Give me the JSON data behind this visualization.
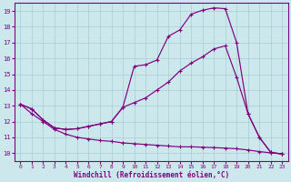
{
  "xlabel": "Windchill (Refroidissement éolien,°C)",
  "background_color": "#cce8ec",
  "line_color": "#800080",
  "xlim": [
    -0.5,
    23.5
  ],
  "ylim": [
    9.5,
    19.5
  ],
  "xticks": [
    0,
    1,
    2,
    3,
    4,
    5,
    6,
    7,
    8,
    9,
    10,
    11,
    12,
    13,
    14,
    15,
    16,
    17,
    18,
    19,
    20,
    21,
    22,
    23
  ],
  "yticks": [
    10,
    11,
    12,
    13,
    14,
    15,
    16,
    17,
    18,
    19
  ],
  "grid_color": "#a8ccd4",
  "line1_x": [
    0,
    1,
    2,
    3,
    4,
    5,
    6,
    7,
    8,
    9,
    10,
    11,
    12,
    13,
    14,
    15,
    16,
    17,
    18,
    19,
    20,
    21,
    22,
    23
  ],
  "line1_y": [
    13.1,
    12.8,
    12.1,
    11.6,
    11.5,
    11.55,
    11.7,
    11.85,
    12.0,
    12.9,
    15.5,
    15.6,
    15.9,
    17.4,
    17.8,
    18.8,
    19.05,
    19.2,
    19.15,
    17.0,
    12.5,
    11.0,
    10.05,
    9.95
  ],
  "line2_x": [
    0,
    1,
    2,
    3,
    4,
    5,
    6,
    7,
    8,
    9,
    10,
    11,
    12,
    13,
    14,
    15,
    16,
    17,
    18,
    19,
    20,
    21,
    22,
    23
  ],
  "line2_y": [
    13.1,
    12.8,
    12.1,
    11.6,
    11.5,
    11.55,
    11.7,
    11.85,
    12.0,
    12.9,
    13.2,
    13.5,
    14.0,
    14.5,
    15.2,
    15.7,
    16.1,
    16.6,
    16.8,
    14.8,
    12.5,
    11.0,
    10.05,
    9.95
  ],
  "line3_x": [
    0,
    1,
    2,
    3,
    4,
    5,
    6,
    7,
    8,
    9,
    10,
    11,
    12,
    13,
    14,
    15,
    16,
    17,
    18,
    19,
    20,
    21,
    22,
    23
  ],
  "line3_y": [
    13.1,
    12.5,
    12.0,
    11.5,
    11.2,
    11.0,
    10.9,
    10.8,
    10.75,
    10.65,
    10.6,
    10.55,
    10.5,
    10.45,
    10.4,
    10.4,
    10.38,
    10.35,
    10.32,
    10.28,
    10.2,
    10.1,
    10.02,
    9.95
  ]
}
